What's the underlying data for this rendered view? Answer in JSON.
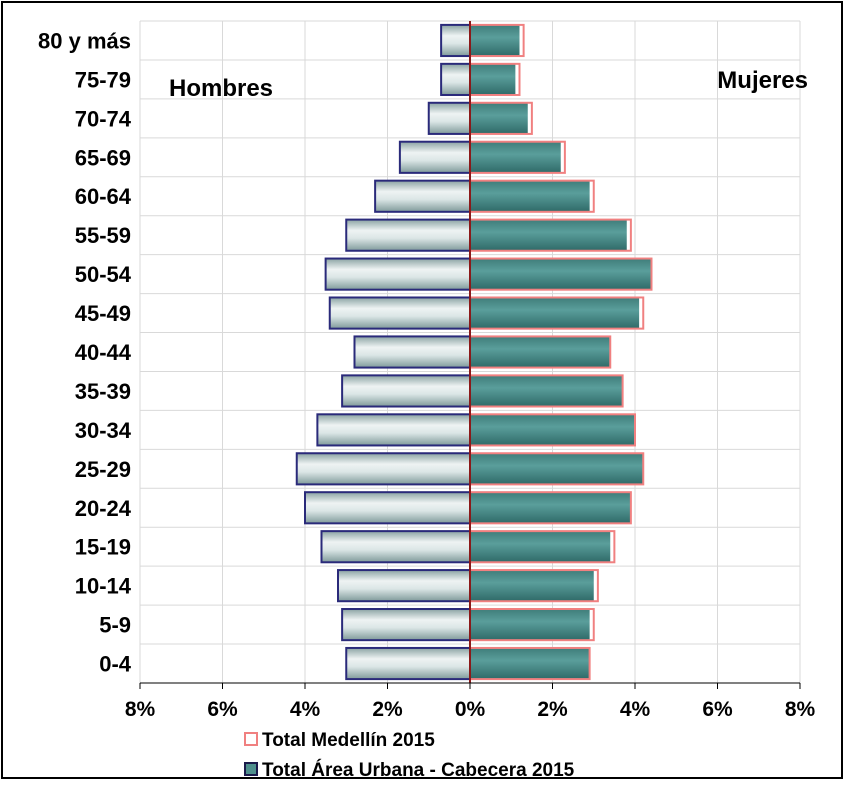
{
  "chart_data": {
    "type": "bar",
    "orientation": "horizontal-population-pyramid",
    "categories": [
      "0-4",
      "5-9",
      "10-14",
      "15-19",
      "20-24",
      "25-29",
      "30-34",
      "35-39",
      "40-44",
      "45-49",
      "50-54",
      "55-59",
      "60-64",
      "65-69",
      "70-74",
      "75-79",
      "80 y más"
    ],
    "series": [
      {
        "name": "Total Área Urbana - Cabecera 2015",
        "values_hombres": [
          3.0,
          3.1,
          3.2,
          3.6,
          4.0,
          4.2,
          3.7,
          3.1,
          2.8,
          3.4,
          3.5,
          3.0,
          2.3,
          1.7,
          1.0,
          0.7,
          0.7
        ],
        "values_mujeres": [
          2.9,
          2.9,
          3.0,
          3.4,
          3.9,
          4.2,
          4.0,
          3.7,
          3.4,
          4.1,
          4.4,
          3.8,
          2.9,
          2.2,
          1.4,
          1.1,
          1.2
        ]
      },
      {
        "name": "Total Medellín 2015",
        "values_hombres": [
          3.0,
          3.1,
          3.2,
          3.6,
          4.0,
          4.2,
          3.7,
          3.1,
          2.8,
          3.4,
          3.5,
          3.0,
          2.3,
          1.7,
          1.0,
          0.7,
          0.7
        ],
        "values_mujeres": [
          2.9,
          3.0,
          3.1,
          3.5,
          3.9,
          4.2,
          4.0,
          3.7,
          3.4,
          4.2,
          4.4,
          3.9,
          3.0,
          2.3,
          1.5,
          1.2,
          1.3
        ]
      }
    ],
    "xlim": [
      -8,
      8
    ],
    "x_ticks": [
      "8%",
      "6%",
      "4%",
      "2%",
      "0%",
      "2%",
      "4%",
      "6%",
      "8%"
    ],
    "annotations": {
      "left": "Hombres",
      "right": "Mujeres"
    },
    "legend_position": "bottom",
    "grid": true,
    "colors": {
      "urbana_fill": "#4e8f8c",
      "hombres_fill": "#c7d6d6",
      "urbana_border": "#2a2a7a",
      "medellin_border": "#f08080",
      "grid": "#d9d9d9"
    }
  }
}
